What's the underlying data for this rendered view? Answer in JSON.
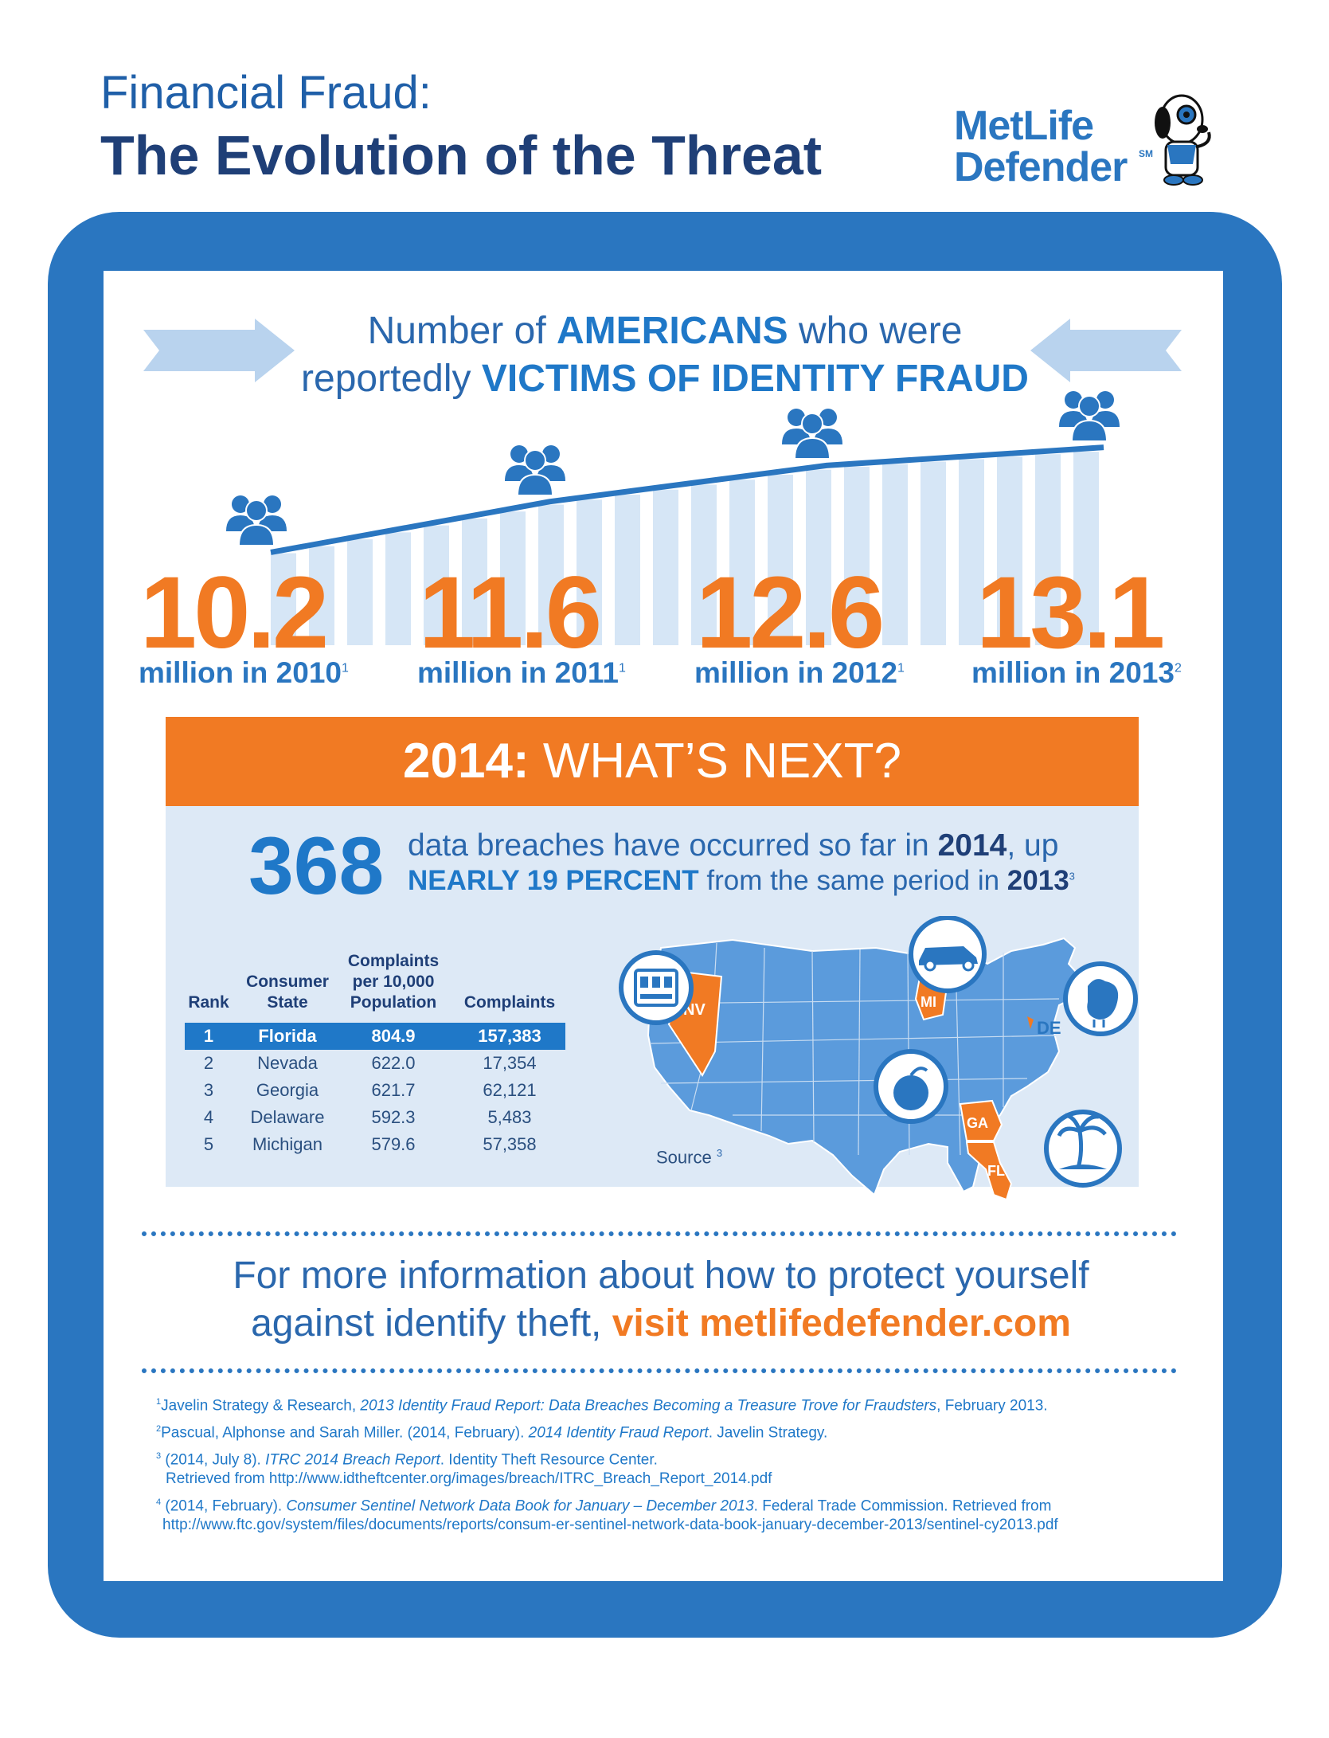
{
  "header": {
    "title_line1": "Financial Fraud:",
    "title_line2": "The Evolution of the Threat",
    "brand_line1": "MetLife",
    "brand_line2": "Defender",
    "brand_tm": "SM"
  },
  "heading": {
    "p1": "Number of ",
    "p1_bold": "AMERICANS",
    "p1_end": " who were",
    "p2": "reportedly ",
    "p2_bold": "VICTIMS OF IDENTITY FRAUD"
  },
  "stats": [
    {
      "value": "10.2",
      "label": "million in 2010",
      "note": "1"
    },
    {
      "value": "11.6",
      "label": "million in 2011",
      "note": "1"
    },
    {
      "value": "12.6",
      "label": "million in 2012",
      "note": "1"
    },
    {
      "value": "13.1",
      "label": "million in 2013",
      "note": "2"
    }
  ],
  "chart_data": {
    "type": "line",
    "x": [
      "2010",
      "2011",
      "2012",
      "2013"
    ],
    "series": [
      {
        "values": [
          10.2,
          11.6,
          12.6,
          13.1
        ]
      }
    ]
  },
  "banner": {
    "year": "2014:",
    "text": " WHAT’S NEXT?"
  },
  "breach": {
    "number": "368",
    "line1_a": "data breaches have occurred so far in ",
    "line1_b": "2014",
    "line1_c": ", up",
    "line2_a": "NEARLY 19 PERCENT",
    "line2_b": " from the same period in ",
    "line2_c": "2013",
    "line2_note": "3"
  },
  "table": {
    "headers": {
      "rank": "Rank",
      "state_1": "Consumer",
      "state_2": "State",
      "per_1": "Complaints",
      "per_2": "per 10,000",
      "per_3": "Population",
      "complaints": "Complaints"
    },
    "rows": [
      {
        "rank": "1",
        "state": "Florida",
        "per": "804.9",
        "complaints": "157,383"
      },
      {
        "rank": "2",
        "state": "Nevada",
        "per": "622.0",
        "complaints": "17,354"
      },
      {
        "rank": "3",
        "state": "Georgia",
        "per": "621.7",
        "complaints": "62,121"
      },
      {
        "rank": "4",
        "state": "Delaware",
        "per": "592.3",
        "complaints": "5,483"
      },
      {
        "rank": "5",
        "state": "Michigan",
        "per": "579.6",
        "complaints": "57,358"
      }
    ]
  },
  "map": {
    "labels": {
      "nv": "NV",
      "mi": "MI",
      "de": "DE",
      "ga": "GA",
      "fl": "FL"
    },
    "source": "Source",
    "source_note": "3",
    "icons": [
      "slot-machine-icon",
      "car-icon",
      "chicken-icon",
      "peach-icon",
      "palm-tree-icon"
    ]
  },
  "info": {
    "line1": "For more information about how to protect yourself",
    "line2_a": "against identify theft, ",
    "line2_link": "visit metlifedefender.com"
  },
  "footnotes": {
    "f1_num": "1",
    "f1_a": "Javelin Strategy & Research, ",
    "f1_i": "2013 Identity Fraud Report: Data Breaches Becoming a Treasure Trove for Fraudsters",
    "f1_b": ", February 2013.",
    "f2_num": "2",
    "f2_a": "Pascual, Alphonse and Sarah Miller. (2014, February). ",
    "f2_i": "2014 Identity Fraud Report",
    "f2_b": ". Javelin Strategy.",
    "f3_num": "3",
    "f3_a": " (2014, July 8). ",
    "f3_i": "ITRC 2014 Breach Report",
    "f3_b": ". Identity Theft Resource Center.",
    "f3_c": "Retrieved from http://www.idtheftcenter.org/images/breach/ITRC_Breach_Report_2014.pdf",
    "f4_num": "4",
    "f4_a": " (2014, February). ",
    "f4_i": "Consumer Sentinel Network Data Book for January – December 2013",
    "f4_b": ". Federal Trade Commission. Retrieved from",
    "f4_c": "http://www.ftc.gov/system/files/documents/reports/consum-er-sentinel-network-data-book-january-december-2013/sentinel-cy2013.pdf"
  },
  "colors": {
    "blue": "#2a76c0",
    "dark_blue": "#1f3f77",
    "orange": "#f17a23",
    "light_blue": "#dde9f6",
    "stripe": "#d6e6f6"
  }
}
